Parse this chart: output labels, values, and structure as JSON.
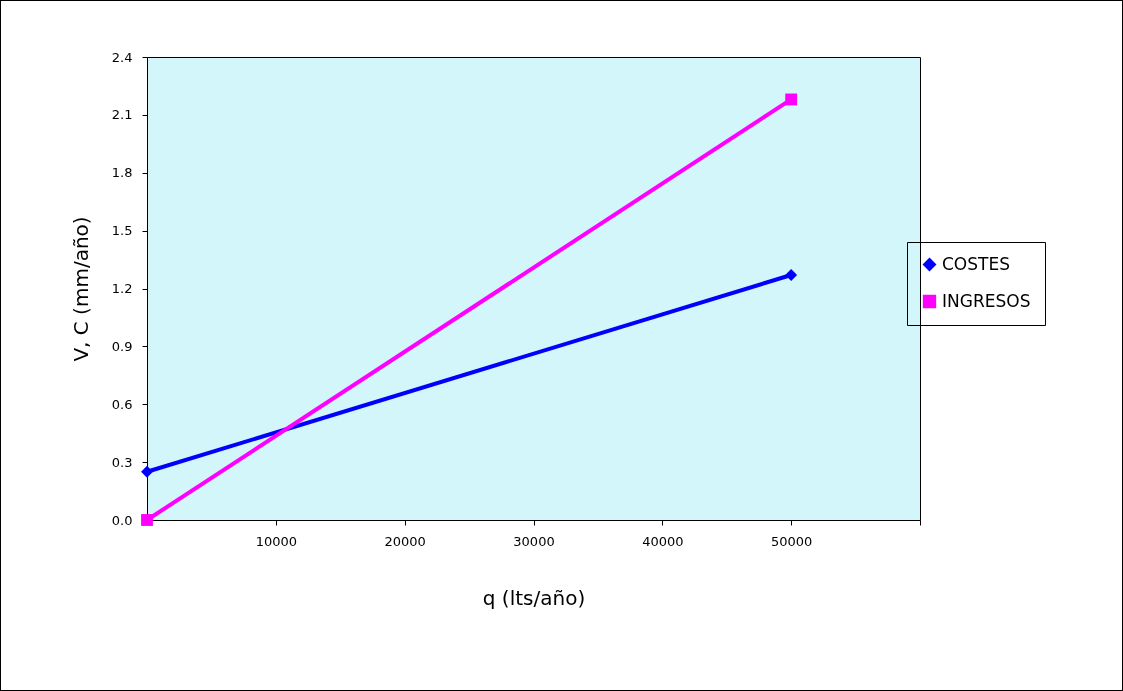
{
  "chart_data": {
    "type": "line",
    "xlabel": "q (lts/año)",
    "ylabel": "V, C (mm/año)",
    "x": [
      0,
      50000
    ],
    "series": [
      {
        "name": "COSTES",
        "color": "#0000ff",
        "values": [
          0.25,
          1.27
        ],
        "marker": "diamond"
      },
      {
        "name": "INGRESOS",
        "color": "#ff00ff",
        "values": [
          0,
          2.18
        ],
        "marker": "square"
      }
    ],
    "xlim": [
      0,
      60000
    ],
    "xticks": [
      {
        "value": 0,
        "label": null
      },
      10000,
      20000,
      30000,
      40000,
      50000,
      {
        "value": 60000,
        "label": null
      }
    ],
    "ylim": [
      0,
      2.4
    ],
    "yticks": [
      {
        "value": 0,
        "label": "0.0"
      },
      {
        "value": 0.3,
        "label": "0.3"
      },
      {
        "value": 0.6,
        "label": "0.6"
      },
      {
        "value": 0.9,
        "label": "0.9"
      },
      {
        "value": 1.2,
        "label": "1.2"
      },
      {
        "value": 1.5,
        "label": "1.5"
      },
      {
        "value": 1.8,
        "label": "1.8"
      },
      {
        "value": 2.1,
        "label": "2.1"
      },
      {
        "value": 2.4,
        "label": "2.4"
      }
    ],
    "grid": false,
    "legend": "right",
    "line_style": "solid"
  }
}
